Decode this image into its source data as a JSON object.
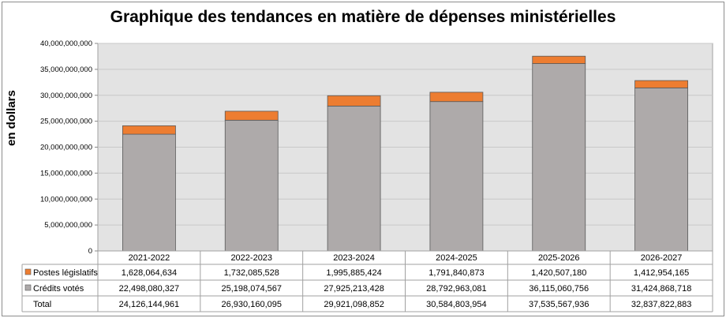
{
  "chart_data": {
    "type": "bar",
    "stacked": true,
    "title": "Graphique des tendances en matière de dépenses ministérielles",
    "xlabel": "",
    "ylabel": "en dollars",
    "ylim": [
      0,
      40000000000
    ],
    "yticks": [
      0,
      5000000000,
      10000000000,
      15000000000,
      20000000000,
      25000000000,
      30000000000,
      35000000000,
      40000000000
    ],
    "ytick_labels": [
      "0",
      "5,000,000,000",
      "10,000,000,000",
      "15,000,000,000",
      "20,000,000,000",
      "25,000,000,000",
      "30,000,000,000",
      "35,000,000,000",
      "40,000,000,000"
    ],
    "grid": true,
    "categories": [
      "2021-2022",
      "2022-2023",
      "2023-2024",
      "2024-2025",
      "2025-2026",
      "2026-2027"
    ],
    "series": [
      {
        "name": "Crédits votés",
        "color": "#aeaaaa",
        "values": [
          22498080327,
          25198074567,
          27925213428,
          28792963081,
          36115060756,
          31424868718
        ],
        "labels": [
          "22,498,080,327",
          "25,198,074,567",
          "27,925,213,428",
          "28,792,963,081",
          "36,115,060,756",
          "31,424,868,718"
        ]
      },
      {
        "name": "Postes législatifs",
        "color": "#ed7d31",
        "values": [
          1628064634,
          1732085528,
          1995885424,
          1791840873,
          1420507180,
          1412954165
        ],
        "labels": [
          "1,628,064,634",
          "1,732,085,528",
          "1,995,885,424",
          "1,791,840,873",
          "1,420,507,180",
          "1,412,954,165"
        ]
      }
    ],
    "totals": {
      "name": "Total",
      "labels": [
        "24,126,144,961",
        "26,930,160,095",
        "29,921,098,852",
        "30,584,803,954",
        "37,535,567,936",
        "32,837,822,883"
      ]
    },
    "legend": "data-table"
  }
}
